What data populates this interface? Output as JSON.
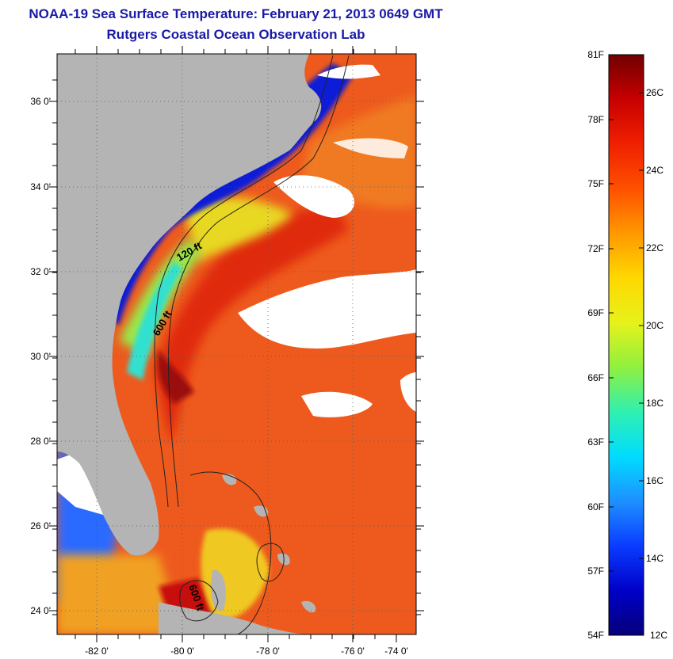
{
  "title": "NOAA-19 Sea Surface Temperature:  February 21, 2013 0649 GMT",
  "subtitle": "Rutgers Coastal Ocean Observation Lab",
  "map": {
    "lon_labels": [
      "-82 0'",
      "-80 0'",
      "-78 0'",
      "-76 0'",
      "-74 0'"
    ],
    "lat_labels": [
      "36 0'",
      "34 0'",
      "32 0'",
      "30 0'",
      "28 0'",
      "26 0'",
      "24 0'"
    ],
    "contour_labels": [
      "120 ft",
      "600 ft",
      "600 ft"
    ],
    "colors": {
      "land": "#b4b4b4",
      "cloud": "#ffffff",
      "cold": "#0a1fd6",
      "warm": "#e8461b",
      "hot": "#9c1010"
    }
  },
  "colorbar": {
    "fahrenheit_labels": [
      "81F",
      "78F",
      "75F",
      "72F",
      "69F",
      "66F",
      "63F",
      "60F",
      "57F",
      "54F"
    ],
    "celsius_labels": [
      "26C",
      "24C",
      "22C",
      "20C",
      "18C",
      "16C",
      "14C",
      "12C"
    ],
    "stops": [
      "#06007a",
      "#0000c8",
      "#0a3cff",
      "#1e90ff",
      "#00dcff",
      "#30f0b0",
      "#90f040",
      "#e6f21a",
      "#ffd800",
      "#ff9800",
      "#ff5000",
      "#f02000",
      "#c80000",
      "#700000"
    ]
  }
}
